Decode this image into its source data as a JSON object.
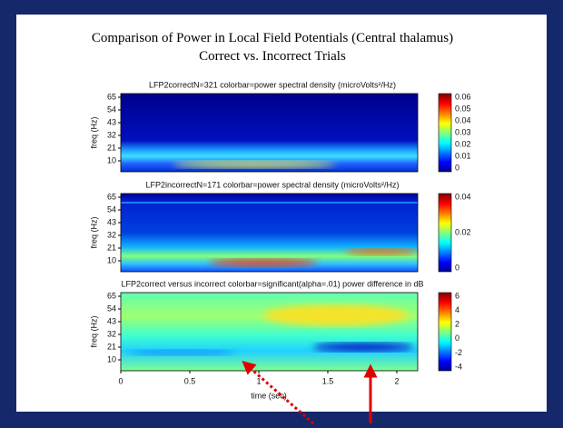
{
  "title": [
    "Comparison of Power in Local Field Potentials (Central thalamus)",
    "Correct vs. Incorrect Trials"
  ],
  "panels": [
    {
      "title": "LFP2correctN=321   colorbar=power spectral density (microVolts²/Hz)",
      "y_label": "freq (Hz)",
      "y_ticks": [
        "65",
        "54",
        "43",
        "32",
        "21",
        "10"
      ],
      "colorbar_ticks": [
        "0.06",
        "0.05",
        "0.04",
        "0.03",
        "0.02",
        "0.01",
        "0"
      ]
    },
    {
      "title": "LFP2incorrectN=171   colorbar=power spectral density (microVolts²/Hz)",
      "y_label": "freq (Hz)",
      "y_ticks": [
        "65",
        "54",
        "43",
        "32",
        "21",
        "10"
      ],
      "colorbar_ticks": [
        "0.04",
        "0.02",
        "0"
      ]
    },
    {
      "title": "LFP2correct versus incorrect  colorbar=significant(alpha=.01) power difference in dB",
      "y_label": "freq (Hz)",
      "y_ticks": [
        "65",
        "54",
        "43",
        "32",
        "21",
        "10"
      ],
      "colorbar_ticks": [
        "6",
        "4",
        "2",
        "0",
        "-2",
        "-4"
      ]
    }
  ],
  "x_axis": {
    "ticks": [
      "0",
      "0.5",
      "1",
      "1.5",
      "2"
    ],
    "label": "time (sec)"
  }
}
